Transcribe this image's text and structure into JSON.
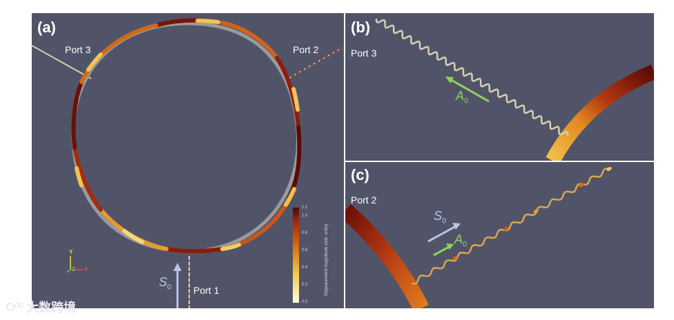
{
  "panel_a": {
    "label": "(a)",
    "port1": "Port 1",
    "port2": "Port 2",
    "port3": "Port 3",
    "mode_s0": {
      "letter": "S",
      "sub": "0"
    },
    "colorbar": {
      "title": "Displacement magnitude (arb. units)",
      "ticks": [
        "1.1",
        "1.0",
        "0.8",
        "0.6",
        "0.4",
        "0.2",
        "0.0"
      ]
    },
    "axes": {
      "y": "Y",
      "z": "Z",
      "x": "X"
    }
  },
  "panel_b": {
    "label": "(b)",
    "port3": "Port 3",
    "mode_a0": {
      "letter": "A",
      "sub": "0"
    }
  },
  "panel_c": {
    "label": "(c)",
    "port2": "Port 2",
    "mode_s0": {
      "letter": "S",
      "sub": "0"
    },
    "mode_a0": {
      "letter": "A",
      "sub": "0"
    }
  },
  "watermark": {
    "text": "大数跨境"
  },
  "colors": {
    "background": "#515468",
    "s0_arrow": "#b7c5e6",
    "a0_arrow": "#8fd35a",
    "waveguide": "#d8d0b0",
    "ring_grey": "#9a9a9a"
  }
}
